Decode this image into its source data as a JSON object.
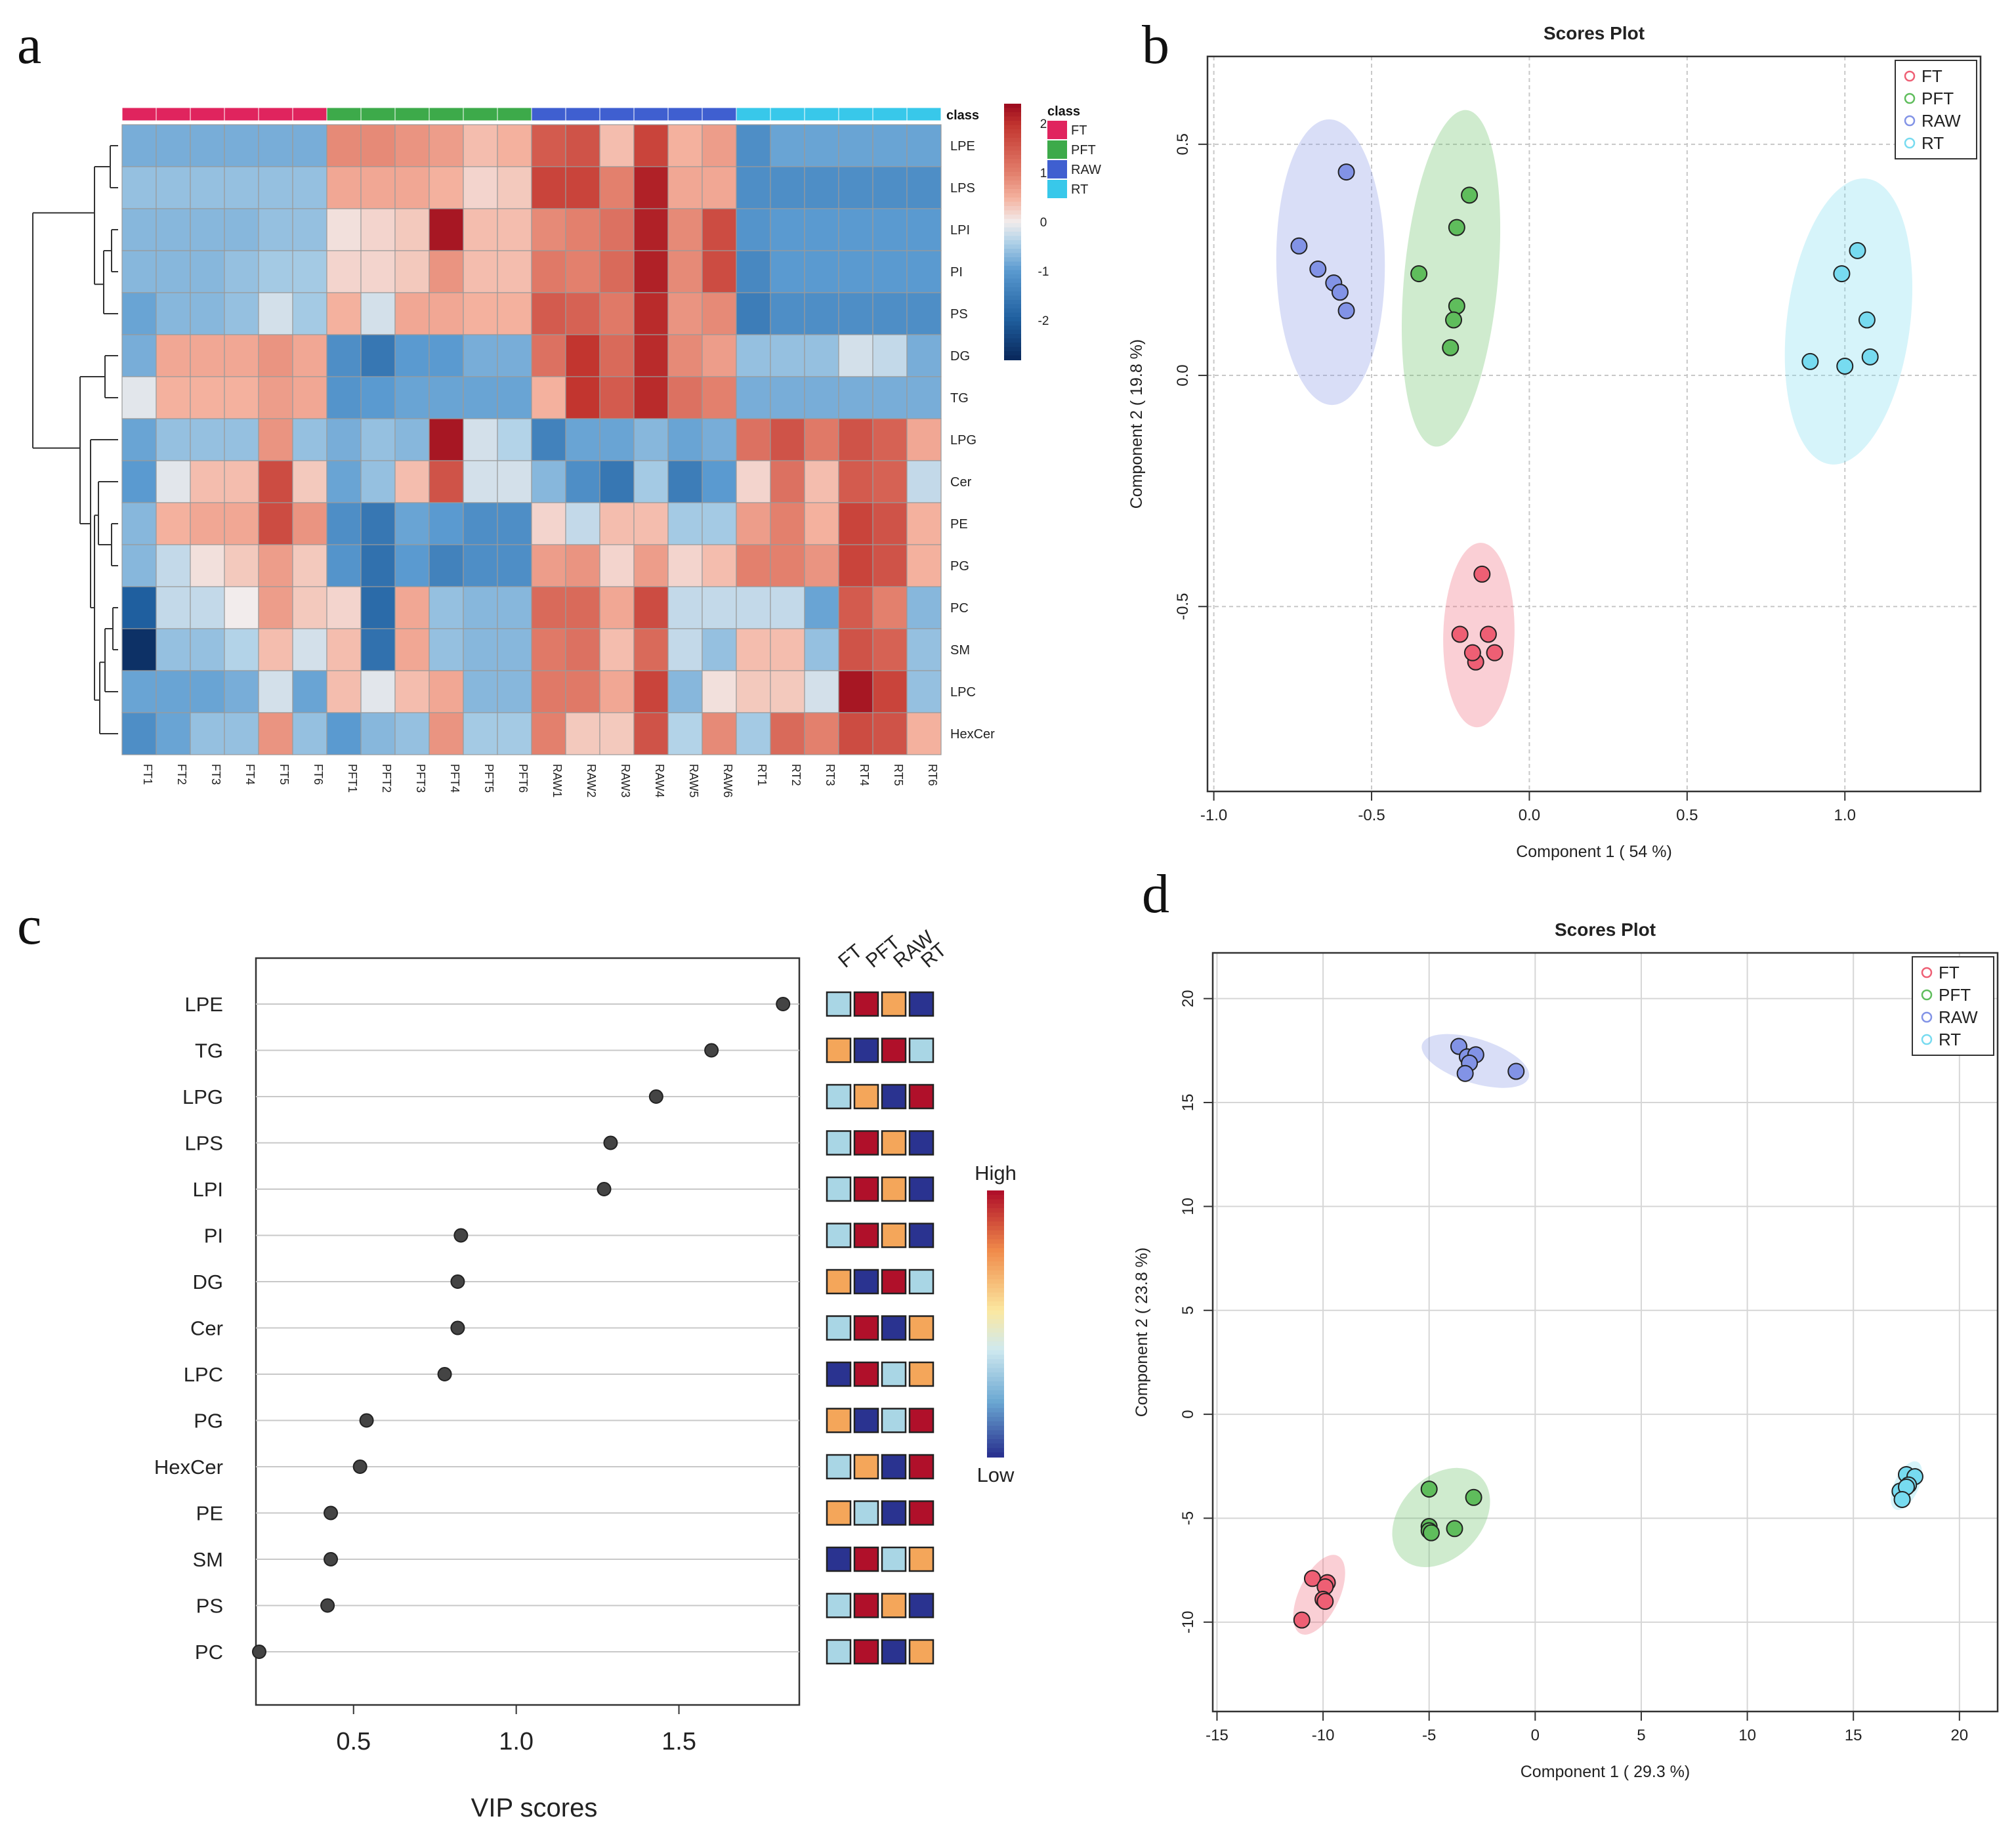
{
  "panels": {
    "a": "a",
    "b": "b",
    "c": "c",
    "d": "d"
  },
  "chart_data": [
    {
      "panel": "a",
      "type": "heatmap",
      "title": "",
      "samples": [
        "FT1",
        "FT2",
        "FT3",
        "FT4",
        "FT5",
        "FT6",
        "PFT1",
        "PFT2",
        "PFT3",
        "PFT4",
        "PFT5",
        "PFT6",
        "RAW1",
        "RAW2",
        "RAW3",
        "RAW4",
        "RAW5",
        "RAW6",
        "RT1",
        "RT2",
        "RT3",
        "RT4",
        "RT5",
        "RT6"
      ],
      "sample_classes": [
        "FT",
        "FT",
        "FT",
        "FT",
        "FT",
        "FT",
        "PFT",
        "PFT",
        "PFT",
        "PFT",
        "PFT",
        "PFT",
        "RAW",
        "RAW",
        "RAW",
        "RAW",
        "RAW",
        "RAW",
        "RT",
        "RT",
        "RT",
        "RT",
        "RT",
        "RT"
      ],
      "class_label": "class",
      "rows": [
        "LPE",
        "LPS",
        "LPI",
        "PI",
        "PS",
        "DG",
        "TG",
        "LPG",
        "Cer",
        "PE",
        "PG",
        "PC",
        "SM",
        "LPC",
        "HexCer"
      ],
      "values": [
        [
          -0.8,
          -0.8,
          -0.8,
          -0.8,
          -0.8,
          -0.8,
          0.9,
          0.9,
          0.8,
          0.7,
          0.4,
          0.5,
          1.5,
          1.6,
          0.4,
          1.8,
          0.5,
          0.7,
          -1.2,
          -0.9,
          -0.9,
          -0.9,
          -0.9,
          -0.9
        ],
        [
          -0.6,
          -0.6,
          -0.6,
          -0.6,
          -0.6,
          -0.6,
          0.6,
          0.6,
          0.6,
          0.5,
          0.2,
          0.3,
          1.8,
          1.8,
          1.0,
          2.2,
          0.6,
          0.6,
          -1.2,
          -1.2,
          -1.2,
          -1.2,
          -1.2,
          -1.2
        ],
        [
          -0.7,
          -0.7,
          -0.7,
          -0.7,
          -0.6,
          -0.6,
          0.1,
          0.2,
          0.3,
          2.3,
          0.4,
          0.4,
          0.9,
          1.0,
          1.2,
          2.2,
          0.9,
          1.7,
          -1.1,
          -1.0,
          -1.0,
          -1.0,
          -1.0,
          -1.0
        ],
        [
          -0.7,
          -0.7,
          -0.7,
          -0.6,
          -0.5,
          -0.5,
          0.2,
          0.2,
          0.3,
          0.8,
          0.4,
          0.4,
          1.1,
          1.0,
          1.3,
          2.2,
          0.9,
          1.7,
          -1.3,
          -1.0,
          -1.0,
          -1.0,
          -1.0,
          -1.0
        ],
        [
          -0.9,
          -0.7,
          -0.7,
          -0.6,
          -0.2,
          -0.5,
          0.5,
          -0.2,
          0.6,
          0.6,
          0.5,
          0.5,
          1.5,
          1.4,
          1.1,
          2.1,
          0.8,
          0.9,
          -1.5,
          -1.2,
          -1.2,
          -1.2,
          -1.2,
          -1.2
        ],
        [
          -0.8,
          0.6,
          0.6,
          0.6,
          0.8,
          0.6,
          -1.2,
          -1.6,
          -1.0,
          -1.0,
          -0.8,
          -0.8,
          1.2,
          2.0,
          1.3,
          2.1,
          0.9,
          0.7,
          -0.6,
          -0.6,
          -0.6,
          -0.2,
          -0.3,
          -0.8
        ],
        [
          -0.1,
          0.5,
          0.5,
          0.5,
          0.7,
          0.6,
          -1.1,
          -1.0,
          -0.9,
          -0.9,
          -0.9,
          -0.9,
          0.5,
          2.0,
          1.5,
          2.1,
          1.2,
          1.0,
          -0.8,
          -0.8,
          -0.8,
          -0.8,
          -0.8,
          -0.8
        ],
        [
          -0.9,
          -0.6,
          -0.6,
          -0.6,
          0.8,
          -0.6,
          -0.8,
          -0.6,
          -0.7,
          2.3,
          -0.2,
          -0.4,
          -1.4,
          -0.9,
          -0.9,
          -0.7,
          -0.9,
          -0.8,
          1.2,
          1.6,
          1.1,
          1.6,
          1.4,
          0.6
        ],
        [
          -1.0,
          -0.1,
          0.4,
          0.4,
          1.7,
          0.3,
          -0.9,
          -0.6,
          0.4,
          1.6,
          -0.2,
          -0.2,
          -0.7,
          -1.2,
          -1.6,
          -0.5,
          -1.5,
          -1.0,
          0.2,
          1.2,
          0.4,
          1.5,
          1.4,
          -0.3
        ],
        [
          -0.7,
          0.5,
          0.6,
          0.6,
          1.7,
          0.8,
          -1.2,
          -1.6,
          -0.9,
          -1.0,
          -1.2,
          -1.2,
          0.2,
          -0.3,
          0.4,
          0.4,
          -0.5,
          -0.5,
          0.7,
          1.0,
          0.5,
          1.8,
          1.6,
          0.5
        ],
        [
          -0.7,
          -0.3,
          0.1,
          0.3,
          0.7,
          0.3,
          -1.1,
          -1.7,
          -1.0,
          -1.4,
          -1.2,
          -1.2,
          0.7,
          0.8,
          0.2,
          0.7,
          0.2,
          0.4,
          1.0,
          1.0,
          0.8,
          1.8,
          1.6,
          0.5
        ],
        [
          -2.0,
          -0.3,
          -0.3,
          0.0,
          0.7,
          0.3,
          0.2,
          -1.8,
          0.6,
          -0.6,
          -0.7,
          -0.7,
          1.3,
          1.3,
          0.6,
          1.7,
          -0.3,
          -0.3,
          -0.3,
          -0.3,
          -0.9,
          1.5,
          1.0,
          -0.7
        ],
        [
          -2.7,
          -0.6,
          -0.6,
          -0.4,
          0.4,
          -0.2,
          0.4,
          -1.7,
          0.6,
          -0.6,
          -0.7,
          -0.7,
          1.1,
          1.2,
          0.4,
          1.3,
          -0.3,
          -0.6,
          0.4,
          0.4,
          -0.6,
          1.6,
          1.4,
          -0.6
        ],
        [
          -0.9,
          -0.9,
          -0.9,
          -0.8,
          -0.2,
          -0.9,
          0.4,
          -0.1,
          0.4,
          0.6,
          -0.7,
          -0.7,
          1.1,
          1.1,
          0.6,
          1.8,
          -0.7,
          0.1,
          0.3,
          0.3,
          -0.2,
          2.3,
          1.8,
          -0.6
        ],
        [
          -1.2,
          -0.9,
          -0.6,
          -0.6,
          0.8,
          -0.6,
          -1.0,
          -0.7,
          -0.6,
          0.8,
          -0.5,
          -0.5,
          1.0,
          0.3,
          0.3,
          1.6,
          -0.4,
          0.9,
          -0.5,
          1.3,
          1.0,
          1.7,
          1.6,
          0.5
        ]
      ],
      "legend": {
        "title": "class",
        "classes": [
          {
            "name": "FT",
            "color": "#e0245e"
          },
          {
            "name": "PFT",
            "color": "#3daa4a"
          },
          {
            "name": "RAW",
            "color": "#3f5fd0"
          },
          {
            "name": "RT",
            "color": "#38c8ea"
          }
        ],
        "scale_ticks": [
          "2",
          "1",
          "0",
          "-1",
          "-2"
        ]
      }
    },
    {
      "panel": "b",
      "type": "scatter",
      "title": "Scores Plot",
      "xlabel": "Component 1 ( 54 %)",
      "ylabel": "Component 2 ( 19.8 %)",
      "xlim": [
        -1.02,
        1.43
      ],
      "ylim": [
        -0.9,
        0.69
      ],
      "xticks": [
        "-1.0",
        "-0.5",
        "0.0",
        "0.5",
        "1.0"
      ],
      "yticks": [
        "-0.5",
        "0.0",
        "0.5"
      ],
      "legend_position": "top-right",
      "series": [
        {
          "name": "FT",
          "color": "#ee5f74",
          "points": [
            [
              -0.15,
              -0.43
            ],
            [
              -0.13,
              -0.56
            ],
            [
              -0.22,
              -0.56
            ],
            [
              -0.17,
              -0.62
            ],
            [
              -0.18,
              -0.6
            ],
            [
              -0.11,
              -0.6
            ]
          ]
        },
        {
          "name": "PFT",
          "color": "#5fbd5c",
          "points": [
            [
              -0.23,
              0.32
            ],
            [
              -0.19,
              0.39
            ],
            [
              -0.35,
              0.22
            ],
            [
              -0.23,
              0.15
            ],
            [
              -0.24,
              0.12
            ],
            [
              -0.25,
              0.06
            ]
          ]
        },
        {
          "name": "RAW",
          "color": "#8293e6",
          "points": [
            [
              -0.58,
              0.44
            ],
            [
              -0.73,
              0.28
            ],
            [
              -0.67,
              0.23
            ],
            [
              -0.62,
              0.2
            ],
            [
              -0.6,
              0.18
            ],
            [
              -0.58,
              0.14
            ]
          ]
        },
        {
          "name": "RT",
          "color": "#77dbf0",
          "points": [
            [
              1.04,
              0.27
            ],
            [
              0.99,
              0.22
            ],
            [
              1.07,
              0.12
            ],
            [
              1.08,
              0.04
            ],
            [
              0.89,
              0.03
            ],
            [
              1.0,
              0.02
            ]
          ]
        }
      ]
    },
    {
      "panel": "c",
      "type": "scatter",
      "title": "",
      "xlabel": "VIP scores",
      "ylabel": "",
      "xlim": [
        0.2,
        1.87
      ],
      "xticks": [
        "0.5",
        "1.0",
        "1.5"
      ],
      "features": [
        "LPE",
        "TG",
        "LPG",
        "LPS",
        "LPI",
        "PI",
        "DG",
        "Cer",
        "LPC",
        "PG",
        "HexCer",
        "PE",
        "SM",
        "PS",
        "PC"
      ],
      "vip": [
        1.82,
        1.6,
        1.43,
        1.29,
        1.27,
        0.83,
        0.82,
        0.82,
        0.78,
        0.54,
        0.52,
        0.43,
        0.43,
        0.42,
        0.21
      ],
      "groups": [
        "FT",
        "PFT",
        "RAW",
        "RT"
      ],
      "group_levels": [
        [
          "light",
          "high",
          "mid",
          "low"
        ],
        [
          "mid",
          "low",
          "high",
          "light"
        ],
        [
          "light",
          "mid",
          "low",
          "high"
        ],
        [
          "light",
          "high",
          "mid",
          "low"
        ],
        [
          "light",
          "high",
          "mid",
          "low"
        ],
        [
          "light",
          "high",
          "mid",
          "low"
        ],
        [
          "mid",
          "low",
          "high",
          "light"
        ],
        [
          "light",
          "high",
          "low",
          "mid"
        ],
        [
          "low",
          "high",
          "light",
          "mid"
        ],
        [
          "mid",
          "low",
          "light",
          "high"
        ],
        [
          "light",
          "mid",
          "low",
          "high"
        ],
        [
          "mid",
          "light",
          "low",
          "high"
        ],
        [
          "low",
          "high",
          "light",
          "mid"
        ],
        [
          "light",
          "high",
          "mid",
          "low"
        ],
        [
          "light",
          "high",
          "low",
          "mid"
        ]
      ],
      "level_colors": {
        "high": "#b0102a",
        "mid": "#f4a65a",
        "light": "#a9d6e5",
        "low": "#2a3390"
      },
      "color_scale_labels": {
        "high": "High",
        "low": "Low"
      }
    },
    {
      "panel": "d",
      "type": "scatter",
      "title": "Scores Plot",
      "xlabel": "Component 1 ( 29.3 %)",
      "ylabel": "Component 2 ( 23.8 %)",
      "xlim": [
        -15.2,
        21.8
      ],
      "ylim": [
        -14.3,
        22.2
      ],
      "xticks": [
        "-15",
        "-10",
        "-5",
        "0",
        "5",
        "10",
        "15",
        "20"
      ],
      "yticks": [
        "-10",
        "-5",
        "0",
        "5",
        "10",
        "15",
        "20"
      ],
      "legend_position": "top-right",
      "series": [
        {
          "name": "FT",
          "color": "#ee5f74",
          "points": [
            [
              -11.0,
              -9.9
            ],
            [
              -10.5,
              -7.9
            ],
            [
              -9.8,
              -8.1
            ],
            [
              -9.9,
              -8.3
            ],
            [
              -10.0,
              -8.9
            ],
            [
              -9.9,
              -9.0
            ]
          ]
        },
        {
          "name": "PFT",
          "color": "#5fbd5c",
          "points": [
            [
              -5.0,
              -3.6
            ],
            [
              -2.9,
              -4.0
            ],
            [
              -3.8,
              -5.5
            ],
            [
              -5.0,
              -5.4
            ],
            [
              -5.0,
              -5.6
            ],
            [
              -4.9,
              -5.7
            ]
          ]
        },
        {
          "name": "RAW",
          "color": "#8293e6",
          "points": [
            [
              -3.6,
              17.7
            ],
            [
              -3.2,
              17.2
            ],
            [
              -2.8,
              17.3
            ],
            [
              -3.1,
              16.9
            ],
            [
              -3.3,
              16.4
            ],
            [
              -0.9,
              16.5
            ]
          ]
        },
        {
          "name": "RT",
          "color": "#77dbf0",
          "points": [
            [
              17.5,
              -2.9
            ],
            [
              17.9,
              -3.0
            ],
            [
              17.6,
              -3.4
            ],
            [
              17.2,
              -3.7
            ],
            [
              17.5,
              -3.5
            ],
            [
              17.3,
              -4.1
            ]
          ]
        }
      ]
    }
  ]
}
